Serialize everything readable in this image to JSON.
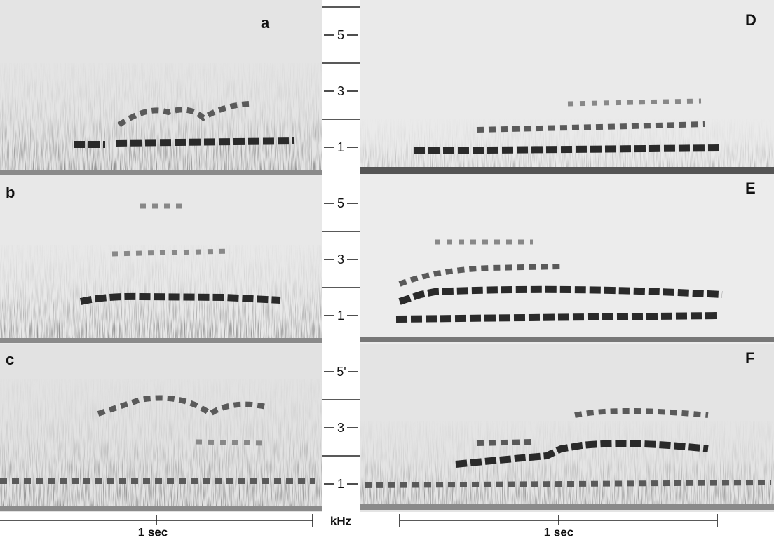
{
  "panels": [
    {
      "label": "a"
    },
    {
      "label": "b"
    },
    {
      "label": "c"
    },
    {
      "label": "D"
    },
    {
      "label": "E"
    },
    {
      "label": "F"
    }
  ],
  "frequency_scale": {
    "rows": [
      [
        "5",
        "3",
        "1"
      ],
      [
        "5",
        "3",
        "1"
      ],
      [
        "5'",
        "3",
        "1"
      ]
    ],
    "unit": "kHz"
  },
  "time_scales": [
    {
      "label": "1 sec"
    },
    {
      "label": "1 sec"
    }
  ]
}
